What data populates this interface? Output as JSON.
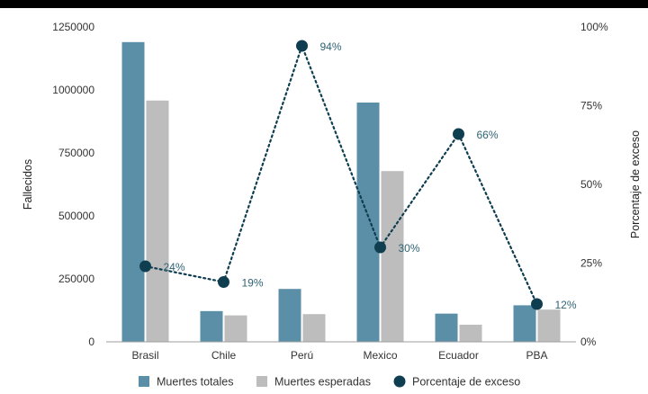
{
  "chart_data": {
    "type": "bar+line",
    "categories": [
      "Brasil",
      "Chile",
      "Perú",
      "Mexico",
      "Ecuador",
      "PBA"
    ],
    "series": [
      {
        "name": "Muertes totales",
        "type": "bar",
        "axis": "left",
        "color": "#5b8fa8",
        "values": [
          1190000,
          122000,
          210000,
          950000,
          112000,
          145000
        ]
      },
      {
        "name": "Muertes esperadas",
        "type": "bar",
        "axis": "left",
        "color": "#bdbdbd",
        "values": [
          958000,
          105000,
          110000,
          678000,
          68000,
          128000
        ]
      },
      {
        "name": "Porcentaje de exceso",
        "type": "line",
        "line_style": "dotted",
        "axis": "right",
        "color": "#0f3e50",
        "values": [
          24,
          19,
          94,
          30,
          66,
          12
        ],
        "labels": [
          "24%",
          "19%",
          "94%",
          "30%",
          "66%",
          "12%"
        ]
      }
    ],
    "ylabel": "Fallecidos",
    "y2label": "Porcentaje de exceso",
    "ylim": [
      0,
      1250000
    ],
    "y2lim": [
      0,
      100
    ],
    "yticks": [
      "0",
      "250000",
      "500000",
      "750000",
      "1000000",
      "1250000"
    ],
    "y2ticks": [
      "0%",
      "25%",
      "50%",
      "75%",
      "100%"
    ],
    "grid": false,
    "legend_position": "bottom"
  }
}
